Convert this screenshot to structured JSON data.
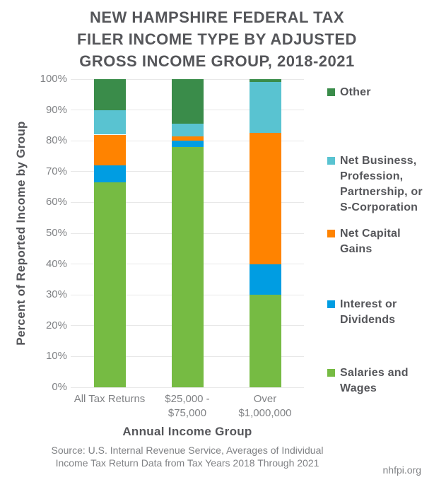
{
  "page": {
    "title_lines": [
      "NEW HAMPSHIRE FEDERAL TAX",
      "FILER INCOME TYPE BY ADJUSTED",
      "GROSS INCOME GROUP, 2018-2021"
    ],
    "footer": {
      "source_lines": [
        "Source: U.S. Internal Revenue Service, Averages of Individual",
        "Income Tax Return Data from Tax Years 2018 Through 2021"
      ],
      "site": "nhfpi.org"
    }
  },
  "colors": {
    "title_text": "#55565A",
    "axis_text": "#808285",
    "gridline": "#E8E8E8",
    "salaries_wages": "#76BB43",
    "interest_dividends": "#009DE2",
    "net_capital_gains": "#FF8300",
    "net_business": "#59C3D1",
    "other": "#3A8C4A"
  },
  "chart_data": {
    "type": "bar",
    "stacked": true,
    "title": "NEW HAMPSHIRE FEDERAL TAX FILER INCOME TYPE BY ADJUSTED GROSS INCOME GROUP, 2018-2021",
    "xlabel": "Annual Income Group",
    "ylabel": "Percent of Reported Income by Group",
    "ylim": [
      0,
      100
    ],
    "y_tick_step": 10,
    "y_tick_suffix": "%",
    "grid": true,
    "legend_position": "right",
    "categories": [
      "All Tax Returns",
      "$25,000 -\n$75,000",
      "Over\n$1,000,000"
    ],
    "series": [
      {
        "name": "Salaries and Wages",
        "color_key": "salaries_wages",
        "values": [
          66.5,
          78,
          30
        ]
      },
      {
        "name": "Interest or Dividends",
        "color_key": "interest_dividends",
        "values": [
          5.5,
          2,
          10
        ]
      },
      {
        "name": "Net Capital Gains",
        "color_key": "net_capital_gains",
        "values": [
          10,
          1.5,
          42.5
        ]
      },
      {
        "name": "Net Business, Profession, Partnership, or S-Corporation",
        "color_key": "net_business",
        "values": [
          8,
          4,
          16.5
        ]
      },
      {
        "name": "Other",
        "color_key": "other",
        "values": [
          10,
          14.5,
          1
        ]
      }
    ]
  }
}
